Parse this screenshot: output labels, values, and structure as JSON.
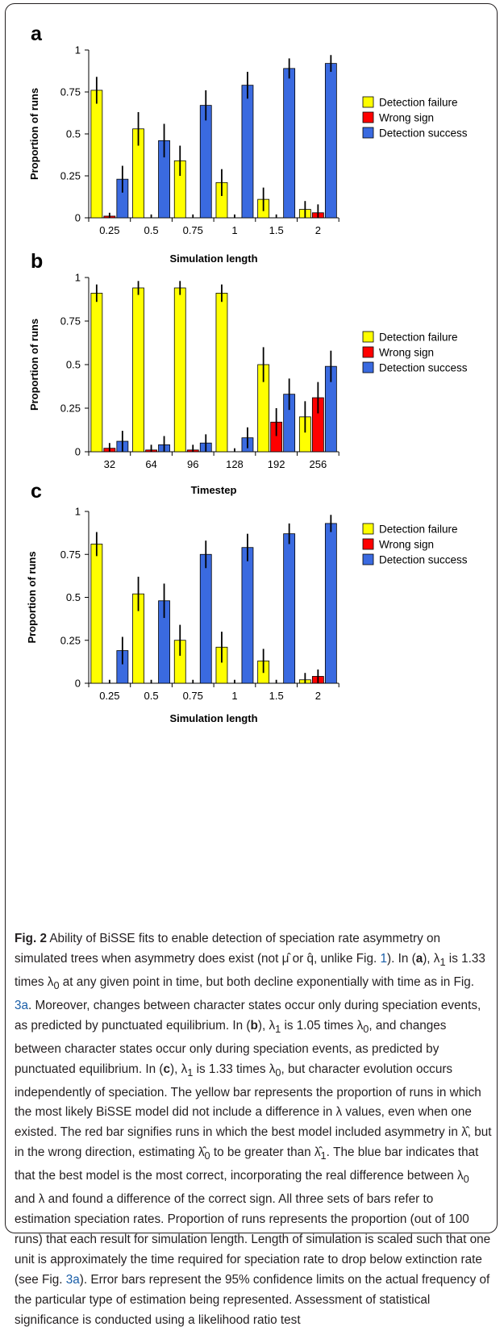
{
  "colors": {
    "detection_failure": "#ffff00",
    "wrong_sign": "#ff0000",
    "detection_success": "#3a6ae0",
    "axis": "#000000"
  },
  "chart_data": [
    {
      "panel": "a",
      "type": "bar",
      "categories": [
        "0.25",
        "0.5",
        "0.75",
        "1",
        "1.5",
        "2"
      ],
      "xlabel": "Simulation length",
      "ylabel": "Proportion of runs",
      "ylim": [
        0,
        1
      ],
      "yticks": [
        "0",
        "0.25",
        "0.5",
        "0.75",
        "1"
      ],
      "legend_position": "right",
      "series": [
        {
          "name": "Detection failure",
          "values": [
            0.76,
            0.53,
            0.34,
            0.21,
            0.11,
            0.05
          ],
          "err": [
            0.08,
            0.1,
            0.09,
            0.08,
            0.07,
            0.05
          ]
        },
        {
          "name": "Wrong sign",
          "values": [
            0.01,
            0.0,
            0.0,
            0.0,
            0.0,
            0.03
          ],
          "err": [
            0.02,
            0.02,
            0.02,
            0.02,
            0.02,
            0.05
          ]
        },
        {
          "name": "Detection success",
          "values": [
            0.23,
            0.46,
            0.67,
            0.79,
            0.89,
            0.92
          ],
          "err": [
            0.08,
            0.1,
            0.09,
            0.08,
            0.06,
            0.05
          ]
        }
      ]
    },
    {
      "panel": "b",
      "type": "bar",
      "categories": [
        "32",
        "64",
        "96",
        "128",
        "192",
        "256"
      ],
      "xlabel": "Timestep",
      "ylabel": "Proportion of runs",
      "ylim": [
        0,
        1
      ],
      "yticks": [
        "0",
        "0.25",
        "0.5",
        "0.75",
        "1"
      ],
      "legend_position": "right",
      "series": [
        {
          "name": "Detection failure",
          "values": [
            0.91,
            0.94,
            0.94,
            0.91,
            0.5,
            0.2
          ],
          "err": [
            0.05,
            0.04,
            0.04,
            0.05,
            0.1,
            0.09
          ]
        },
        {
          "name": "Wrong sign",
          "values": [
            0.02,
            0.01,
            0.01,
            0.0,
            0.17,
            0.31
          ],
          "err": [
            0.03,
            0.03,
            0.03,
            0.02,
            0.08,
            0.09
          ]
        },
        {
          "name": "Detection success",
          "values": [
            0.06,
            0.04,
            0.05,
            0.08,
            0.33,
            0.49
          ],
          "err": [
            0.06,
            0.05,
            0.05,
            0.06,
            0.09,
            0.09
          ]
        }
      ]
    },
    {
      "panel": "c",
      "type": "bar",
      "categories": [
        "0.25",
        "0.5",
        "0.75",
        "1",
        "1.5",
        "2"
      ],
      "xlabel": "Simulation length",
      "ylabel": "Proportion of runs",
      "ylim": [
        0,
        1
      ],
      "yticks": [
        "0",
        "0.25",
        "0.5",
        "0.75",
        "1"
      ],
      "legend_position": "right",
      "series": [
        {
          "name": "Detection failure",
          "values": [
            0.81,
            0.52,
            0.25,
            0.21,
            0.13,
            0.02
          ],
          "err": [
            0.07,
            0.1,
            0.09,
            0.09,
            0.07,
            0.04
          ]
        },
        {
          "name": "Wrong sign",
          "values": [
            0.0,
            0.0,
            0.0,
            0.0,
            0.0,
            0.04
          ],
          "err": [
            0.02,
            0.02,
            0.02,
            0.02,
            0.02,
            0.04
          ]
        },
        {
          "name": "Detection success",
          "values": [
            0.19,
            0.48,
            0.75,
            0.79,
            0.87,
            0.93
          ],
          "err": [
            0.08,
            0.1,
            0.08,
            0.08,
            0.06,
            0.05
          ]
        }
      ]
    }
  ],
  "caption": {
    "fig_label": "Fig. 2",
    "html": " Ability of BiSSE fits to enable detection of speciation rate asymmetry on simulated trees when asymmetry does exist (not μ̂ or q̂, unlike Fig. <span style=\"color:#1a5ea8\">1</span>). In (<b>a</b>), λ<sub>1</sub> is 1.33 times λ<sub>0</sub> at any given point in time, but both decline exponentially with time as in Fig. <span style=\"color:#1a5ea8\">3a</span>. Moreover, changes between character states occur only during speciation events, as predicted by punctuated equilibrium. In (<b>b</b>), λ<sub>1</sub> is 1.05 times λ<sub>0</sub>, and changes between character states occur only during speciation events, as predicted by punctuated equilibrium. In (<b>c</b>), λ<sub>1</sub> is 1.33 times λ<sub>0</sub>, but character evolution occurs independently of speciation. The yellow bar represents the proportion of runs in which the most likely BiSSE model did not include a difference in λ values, even when one existed. The red bar signifies runs in which the best model included asymmetry in λ̂, but in the wrong direction, estimating λ̂<sub>0</sub> to be greater than λ̂<sub>1</sub>. The blue bar indicates that that the best model is the most correct, incorporating the real difference between λ<sub>0</sub> and λ and found a difference of the correct sign. All three sets of bars refer to estimation speciation rates. Proportion of runs represents the proportion (out of 100 runs) that each result for simulation length. Length of simulation is scaled such that one unit is approximately the time required for speciation rate to drop below extinction rate (see Fig. <span style=\"color:#1a5ea8\">3a</span>). Error bars represent the 95% confidence limits on the actual frequency of the particular type of estimation being represented. Assessment of statistical significance is conducted using a likelihood ratio test"
  }
}
